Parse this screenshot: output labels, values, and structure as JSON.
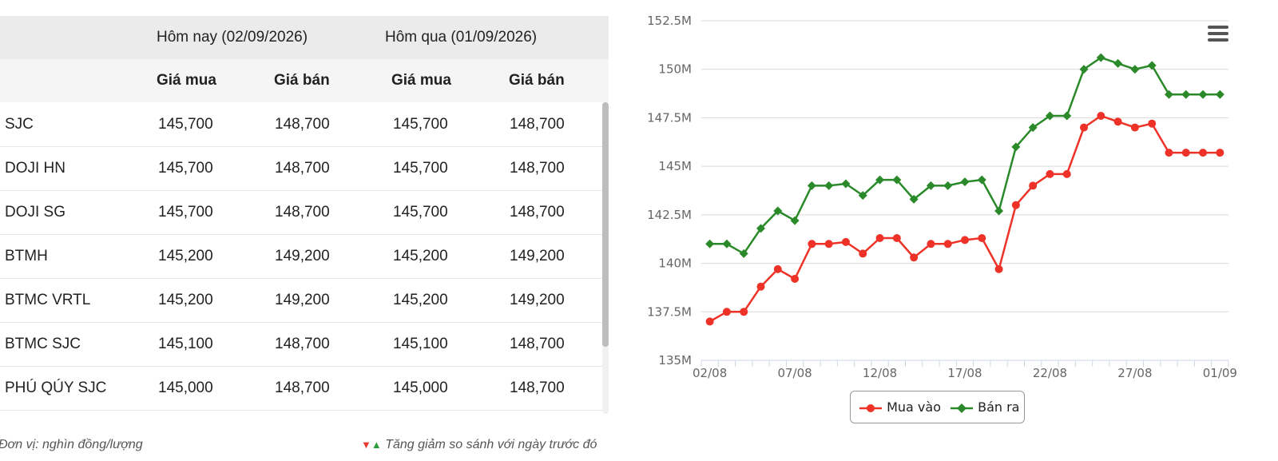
{
  "table": {
    "group_headers": [
      "Hôm nay (02/09/2026)",
      "Hôm qua (01/09/2026)"
    ],
    "sub_headers": [
      "Giá mua",
      "Giá bán",
      "Giá mua",
      "Giá bán"
    ],
    "rows": [
      {
        "brand": "SJC",
        "cells": [
          "145,700",
          "148,700",
          "145,700",
          "148,700"
        ]
      },
      {
        "brand": "DOJI HN",
        "cells": [
          "145,700",
          "148,700",
          "145,700",
          "148,700"
        ]
      },
      {
        "brand": "DOJI SG",
        "cells": [
          "145,700",
          "148,700",
          "145,700",
          "148,700"
        ]
      },
      {
        "brand": "BTMH",
        "cells": [
          "145,200",
          "149,200",
          "145,200",
          "149,200"
        ]
      },
      {
        "brand": "BTMC VRTL",
        "cells": [
          "145,200",
          "149,200",
          "145,200",
          "149,200"
        ]
      },
      {
        "brand": "BTMC SJC",
        "cells": [
          "145,100",
          "148,700",
          "145,100",
          "148,700"
        ]
      },
      {
        "brand": "PHÚ QÚY SJC",
        "cells": [
          "145,000",
          "148,700",
          "145,000",
          "148,700"
        ]
      }
    ]
  },
  "notes": {
    "unit": "Đơn vị: nghìn đồng/lượng",
    "down_marker": "▼",
    "up_marker": "▲",
    "compare": "Tăng giảm so sánh với ngày trước đó"
  },
  "chart_data": {
    "type": "line",
    "x": [
      "02/08",
      "03/08",
      "04/08",
      "05/08",
      "06/08",
      "07/08",
      "08/08",
      "09/08",
      "10/08",
      "11/08",
      "12/08",
      "13/08",
      "14/08",
      "15/08",
      "16/08",
      "17/08",
      "18/08",
      "19/08",
      "20/08",
      "21/08",
      "22/08",
      "23/08",
      "24/08",
      "25/08",
      "26/08",
      "27/08",
      "28/08",
      "29/08",
      "30/08",
      "31/08",
      "01/09"
    ],
    "x_tick_labels": [
      "02/08",
      "07/08",
      "12/08",
      "17/08",
      "22/08",
      "27/08",
      "01/09"
    ],
    "y_tick_labels": [
      "135M",
      "137.5M",
      "140M",
      "142.5M",
      "145M",
      "147.5M",
      "150M",
      "152.5M"
    ],
    "ylim": [
      135,
      152.5
    ],
    "y_unit": "M",
    "grid": true,
    "legend_placement": "bottom-center",
    "series": [
      {
        "name": "Mua vào",
        "color": "#ee3227",
        "marker": "circle",
        "values": [
          137.0,
          137.5,
          137.5,
          138.8,
          139.7,
          139.2,
          141.0,
          141.0,
          141.1,
          140.5,
          141.3,
          141.3,
          140.3,
          141.0,
          141.0,
          141.2,
          141.3,
          139.7,
          143.0,
          144.0,
          144.6,
          144.6,
          147.0,
          147.6,
          147.3,
          147.0,
          147.2,
          145.7,
          145.7,
          145.7,
          145.7
        ]
      },
      {
        "name": "Bán ra",
        "color": "#2a8a2a",
        "marker": "diamond",
        "values": [
          141.0,
          141.0,
          140.5,
          141.8,
          142.7,
          142.2,
          144.0,
          144.0,
          144.1,
          143.5,
          144.3,
          144.3,
          143.3,
          144.0,
          144.0,
          144.2,
          144.3,
          142.7,
          146.0,
          147.0,
          147.6,
          147.6,
          150.0,
          150.6,
          150.3,
          150.0,
          150.2,
          148.7,
          148.7,
          148.7,
          148.7
        ]
      }
    ]
  },
  "colors": {
    "header_bg": "#ebebeb",
    "subheader_bg": "#f5f5f5",
    "grid": "#d9d9d9",
    "axis": "#ccd6eb"
  },
  "icons": {
    "menu": "hamburger-menu-icon"
  }
}
